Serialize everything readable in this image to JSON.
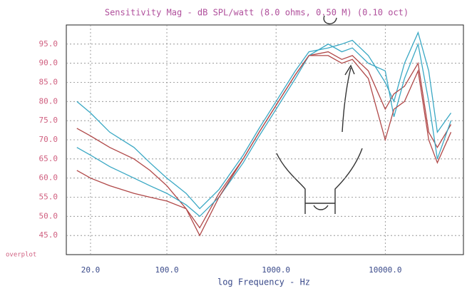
{
  "chart_data": {
    "type": "line",
    "title": "Sensitivity Mag - dB SPL/watt (8.0 ohms, 0.50 M) (0.10 oct)",
    "x_label": "log Frequency - Hz",
    "corner_label": "overplot",
    "log_x": true,
    "grid": true,
    "xlim": [
      12,
      52000
    ],
    "xticks": [
      {
        "value": 20,
        "label": "20.0"
      },
      {
        "value": 100,
        "label": "100.0"
      },
      {
        "value": 1000,
        "label": "1000.0"
      },
      {
        "value": 10000,
        "label": "10000.0"
      }
    ],
    "ylim": [
      40,
      100
    ],
    "yticks": [
      {
        "value": 45,
        "label": "45.0"
      },
      {
        "value": 50,
        "label": "50.0"
      },
      {
        "value": 55,
        "label": "55.0"
      },
      {
        "value": 60,
        "label": "60.0"
      },
      {
        "value": 65,
        "label": "65.0"
      },
      {
        "value": 70,
        "label": "70.0"
      },
      {
        "value": 75,
        "label": "75.0"
      },
      {
        "value": 80,
        "label": "80.0"
      },
      {
        "value": 85,
        "label": "85.0"
      },
      {
        "value": 90,
        "label": "90.0"
      },
      {
        "value": 95,
        "label": "95.0"
      }
    ],
    "x": [
      15,
      20,
      30,
      50,
      70,
      100,
      150,
      200,
      300,
      500,
      700,
      1000,
      1500,
      2000,
      3000,
      4000,
      5000,
      7000,
      10000,
      12000,
      15000,
      20000,
      25000,
      30000,
      40000
    ],
    "series": [
      {
        "color": "#3aa8c4",
        "values": [
          80,
          77,
          72,
          68,
          64,
          60,
          56,
          52,
          57,
          66,
          73,
          80,
          88,
          93,
          94,
          95,
          96,
          92,
          85,
          80,
          90,
          98,
          88,
          72,
          77
        ]
      },
      {
        "color": "#b04848",
        "values": [
          73,
          71,
          68,
          65,
          62,
          58,
          52,
          47,
          56,
          65,
          72,
          79,
          87,
          92,
          93,
          91,
          92,
          88,
          78,
          82,
          84,
          90,
          72,
          68,
          74
        ]
      },
      {
        "color": "#3aa8c4",
        "values": [
          68,
          66,
          63,
          60,
          58,
          56,
          53,
          50,
          55,
          64,
          71,
          78,
          86,
          92,
          95,
          93,
          94,
          90,
          88,
          76,
          86,
          95,
          80,
          65,
          75
        ]
      },
      {
        "color": "#b04848",
        "values": [
          62,
          60,
          58,
          56,
          55,
          54,
          52,
          45,
          55,
          65,
          72,
          79,
          87,
          92,
          92,
          90,
          91,
          86,
          70,
          78,
          80,
          88,
          70,
          64,
          72
        ]
      }
    ]
  }
}
